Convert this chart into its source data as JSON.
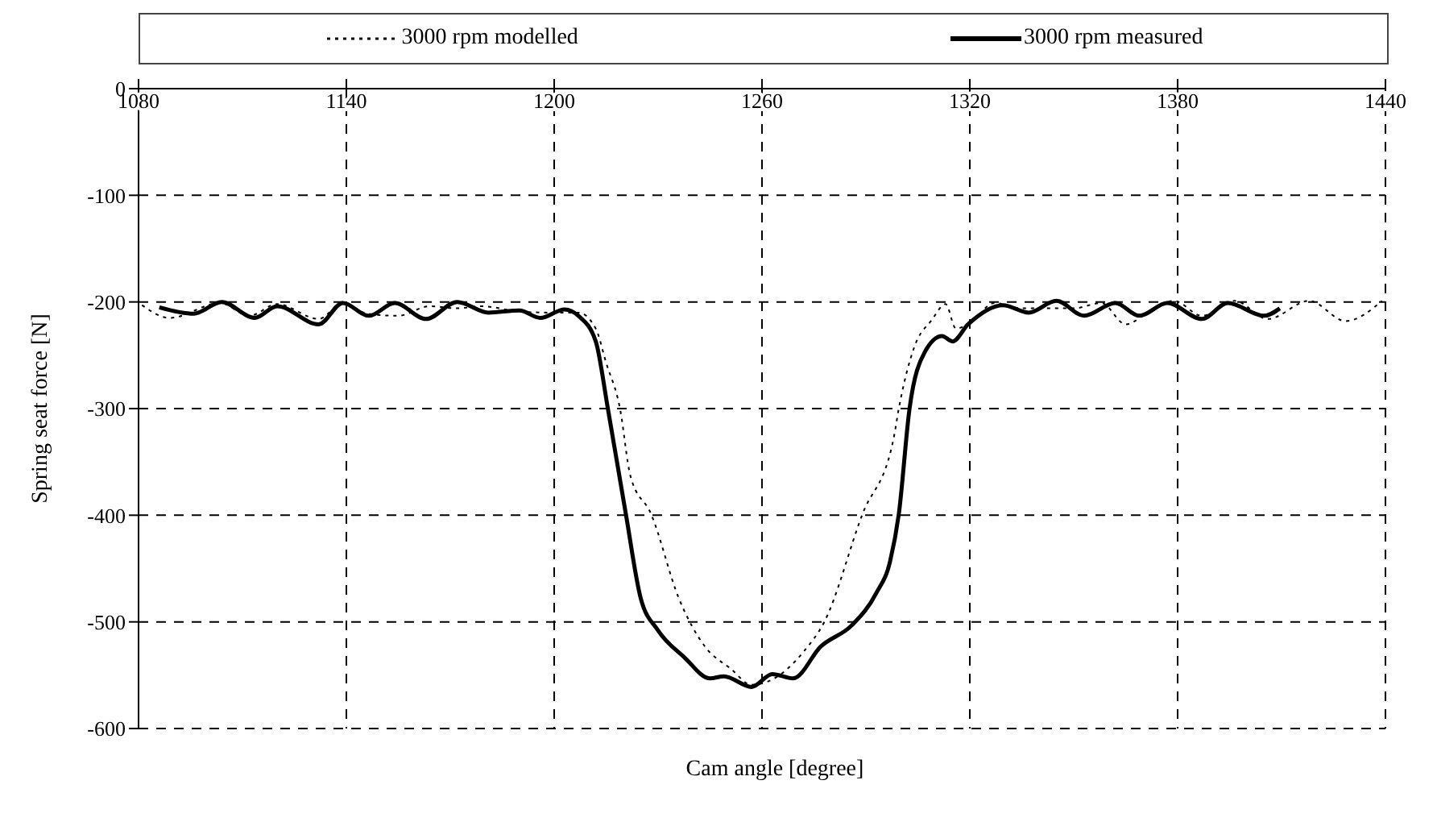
{
  "chart_data": {
    "type": "line",
    "xlabel": "Cam angle [degree]",
    "ylabel": "Spring seat force [N]",
    "xlim": [
      1080,
      1440
    ],
    "xticks": [
      1080,
      1140,
      1200,
      1260,
      1320,
      1380,
      1440
    ],
    "ylim": [
      -600,
      0
    ],
    "yticks": [
      0,
      -100,
      -200,
      -300,
      -400,
      -500,
      -600
    ],
    "grid": true,
    "legend": "top",
    "marker": "none",
    "series": [
      {
        "name": "3000 rpm modelled",
        "color": "#000000",
        "line_style": "dotted",
        "x": [
          1081,
          1089,
          1103.5,
          1112,
          1120,
          1132,
          1139,
          1146,
          1155,
          1164,
          1172,
          1179,
          1190,
          1199,
          1207,
          1212,
          1215,
          1219,
          1222,
          1228,
          1236,
          1243.5,
          1251,
          1257,
          1263,
          1272,
          1278,
          1289,
          1298,
          1299.5,
          1304,
          1309,
          1313,
          1316,
          1321,
          1327,
          1335,
          1342,
          1350,
          1358,
          1365,
          1373,
          1379,
          1387,
          1396.5,
          1406,
          1418,
          1428.5,
          1439
        ],
        "values": [
          -203,
          -215,
          -201,
          -213,
          -202,
          -216,
          -201,
          -211,
          -213,
          -204,
          -206,
          -204,
          -209,
          -210,
          -210,
          -225,
          -257,
          -300,
          -363,
          -399,
          -478,
          -523,
          -544,
          -559,
          -554,
          -528,
          -500,
          -399,
          -328,
          -300,
          -242,
          -217,
          -202,
          -225,
          -217,
          -201,
          -206,
          -206,
          -206,
          -201,
          -221,
          -206,
          -199,
          -213,
          -199,
          -216,
          -199,
          -218,
          -199
        ]
      },
      {
        "name": "3000 rpm measured",
        "color": "#000000",
        "line_style": "solid",
        "x": [
          1086,
          1096,
          1104,
          1113.5,
          1120,
          1132,
          1139,
          1146.5,
          1154,
          1163,
          1172,
          1181,
          1190,
          1196,
          1203,
          1207,
          1212,
          1215.5,
          1220.7,
          1225,
          1230,
          1237.5,
          1245,
          1249,
          1257,
          1263,
          1269,
          1277,
          1286,
          1293,
          1297,
          1299.5,
          1302.6,
          1307,
          1312,
          1315,
          1319.5,
          1329.6,
          1337,
          1345,
          1353,
          1362,
          1369,
          1377,
          1387,
          1394.5,
          1405,
          1409.5
        ],
        "values": [
          -205,
          -211,
          -200,
          -215,
          -204,
          -221,
          -201,
          -213,
          -201,
          -216,
          -200,
          -210,
          -208,
          -215,
          -207,
          -213,
          -237,
          -300,
          -399,
          -478,
          -508,
          -533,
          -553,
          -551,
          -561,
          -549,
          -553,
          -523,
          -503,
          -473,
          -443,
          -399,
          -300,
          -247,
          -232,
          -237,
          -221,
          -203,
          -210,
          -199,
          -213,
          -201,
          -213,
          -201,
          -216,
          -201,
          -213,
          -206
        ]
      }
    ]
  }
}
